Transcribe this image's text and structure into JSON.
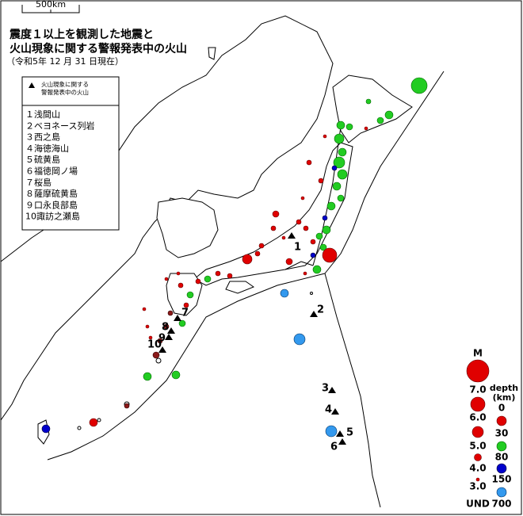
{
  "scale_bar": "500km",
  "title": [
    "震度１以上を観測した地震と",
    "火山現象に関する警報発表中の火山"
  ],
  "subtitle": "（令和5年 12 月 31 日現在）",
  "volcano_legend": {
    "title": [
      "火山現象に関する",
      "警報発表中の火山"
    ],
    "items": [
      "１浅間山",
      "２ベヨネース列岩",
      "３西之島",
      "４海徳海山",
      "５硫黄島",
      "６福徳岡ノ場",
      "７桜島",
      "８薩摩硫黄島",
      "９口永良部島",
      "10諏訪之瀬島"
    ]
  },
  "volcano_labels": [
    "1",
    "2",
    "3",
    "4",
    "5",
    "6",
    "7",
    "8",
    "9",
    "10"
  ],
  "magnitude_legend": {
    "title": "M",
    "labels": [
      "7.0",
      "6.0",
      "5.0",
      "4.0",
      "3.0",
      "UND"
    ]
  },
  "depth_legend": {
    "title": [
      "depth",
      "(km)"
    ],
    "labels": [
      "0",
      "30",
      "80",
      "150",
      "700"
    ]
  }
}
